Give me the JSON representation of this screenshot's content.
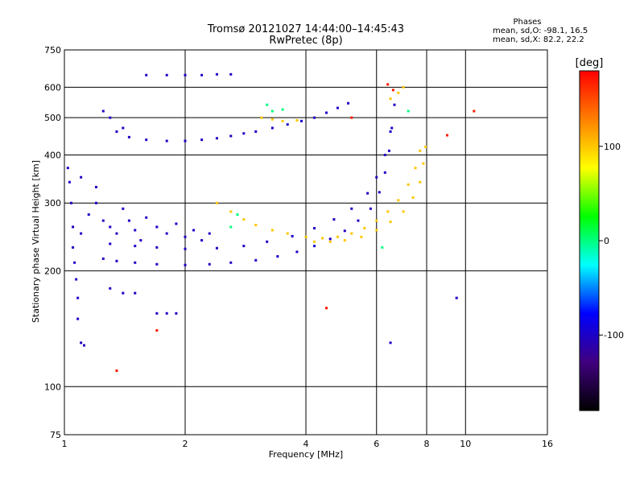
{
  "chart_data": {
    "type": "scatter",
    "title": "Tromsø 20121027 14:44:00–14:45:43",
    "subtitle": "RwPretec (8p)",
    "xlabel": "Frequency [MHz]",
    "ylabel": "Stationary phase Virtual Height [km]",
    "x_scale": "log",
    "y_scale": "log",
    "xlim": [
      1,
      16
    ],
    "ylim": [
      75,
      750
    ],
    "x_ticks": [
      1,
      2,
      4,
      6,
      8,
      10,
      16
    ],
    "x_tick_labels": [
      "1",
      "2",
      "4",
      "6",
      "8",
      "10",
      "16"
    ],
    "y_ticks": [
      75,
      100,
      200,
      300,
      400,
      500,
      600,
      750
    ],
    "y_tick_labels": [
      "75",
      "100",
      "200",
      "300",
      "400",
      "500",
      "600",
      "750"
    ],
    "grid": true,
    "phase_stats": {
      "heading": "Phases",
      "line_o": "mean, sd,O: -98.1, 16.5",
      "line_x": "mean, sd,X:  82.2, 22.2"
    },
    "colorbar": {
      "label": "[deg]",
      "ticks": [
        100,
        0,
        -100
      ],
      "tick_labels": [
        "100",
        "0",
        "-100"
      ],
      "range": [
        -180,
        180
      ],
      "colors": [
        "#ff0000",
        "#ff8000",
        "#ffff00",
        "#00ff00",
        "#00ffff",
        "#0000ff",
        "#400080",
        "#000000"
      ]
    },
    "series": [
      {
        "phase": -100,
        "points": [
          [
            1.25,
            215
          ],
          [
            1.35,
            212
          ],
          [
            1.5,
            210
          ],
          [
            1.7,
            208
          ],
          [
            2.0,
            207
          ],
          [
            2.3,
            208
          ],
          [
            2.6,
            210
          ],
          [
            3.0,
            213
          ],
          [
            3.4,
            218
          ],
          [
            3.8,
            224
          ],
          [
            4.2,
            232
          ],
          [
            4.6,
            242
          ],
          [
            5.0,
            254
          ],
          [
            5.4,
            270
          ],
          [
            5.8,
            290
          ],
          [
            6.1,
            320
          ],
          [
            6.3,
            360
          ],
          [
            6.45,
            410
          ],
          [
            6.55,
            470
          ],
          [
            6.65,
            540
          ],
          [
            1.3,
            235
          ],
          [
            1.5,
            232
          ],
          [
            1.7,
            230
          ],
          [
            2.0,
            228
          ],
          [
            2.4,
            229
          ],
          [
            2.8,
            232
          ],
          [
            3.2,
            238
          ],
          [
            3.7,
            246
          ],
          [
            4.2,
            258
          ],
          [
            4.7,
            272
          ],
          [
            5.2,
            290
          ],
          [
            5.7,
            318
          ],
          [
            6.0,
            350
          ],
          [
            6.3,
            400
          ],
          [
            6.5,
            460
          ],
          [
            1.1,
            250
          ],
          [
            1.15,
            280
          ],
          [
            1.2,
            300
          ],
          [
            1.25,
            270
          ],
          [
            1.3,
            260
          ],
          [
            1.35,
            250
          ],
          [
            1.4,
            290
          ],
          [
            1.45,
            270
          ],
          [
            1.5,
            255
          ],
          [
            1.55,
            240
          ],
          [
            1.6,
            275
          ],
          [
            1.7,
            260
          ],
          [
            1.8,
            250
          ],
          [
            1.9,
            265
          ],
          [
            2.0,
            245
          ],
          [
            2.1,
            255
          ],
          [
            2.2,
            240
          ],
          [
            2.3,
            250
          ],
          [
            1.02,
            370
          ],
          [
            1.03,
            340
          ],
          [
            1.04,
            300
          ],
          [
            1.05,
            260
          ],
          [
            1.05,
            230
          ],
          [
            1.06,
            210
          ],
          [
            1.07,
            190
          ],
          [
            1.08,
            170
          ],
          [
            1.08,
            150
          ],
          [
            1.1,
            130
          ],
          [
            1.12,
            128
          ],
          [
            1.35,
            460
          ],
          [
            1.45,
            445
          ],
          [
            1.6,
            438
          ],
          [
            1.8,
            435
          ],
          [
            2.0,
            435
          ],
          [
            2.2,
            438
          ],
          [
            2.4,
            442
          ],
          [
            2.6,
            448
          ],
          [
            2.8,
            455
          ],
          [
            1.25,
            520
          ],
          [
            1.3,
            500
          ],
          [
            1.4,
            470
          ],
          [
            1.6,
            645
          ],
          [
            1.8,
            645
          ],
          [
            2.0,
            645
          ],
          [
            2.2,
            645
          ],
          [
            2.4,
            648
          ],
          [
            2.6,
            648
          ],
          [
            3.0,
            460
          ],
          [
            3.3,
            470
          ],
          [
            3.6,
            480
          ],
          [
            3.9,
            490
          ],
          [
            4.2,
            500
          ],
          [
            4.5,
            515
          ],
          [
            4.8,
            530
          ],
          [
            5.1,
            545
          ],
          [
            1.3,
            180
          ],
          [
            1.4,
            175
          ],
          [
            1.5,
            175
          ],
          [
            1.7,
            155
          ],
          [
            1.8,
            155
          ],
          [
            1.9,
            155
          ],
          [
            6.5,
            130
          ],
          [
            9.5,
            170
          ],
          [
            1.1,
            350
          ],
          [
            1.2,
            330
          ]
        ]
      },
      {
        "phase": 100,
        "points": [
          [
            2.4,
            300
          ],
          [
            2.6,
            285
          ],
          [
            2.8,
            272
          ],
          [
            3.0,
            263
          ],
          [
            3.3,
            255
          ],
          [
            3.6,
            250
          ],
          [
            4.0,
            245
          ],
          [
            4.4,
            243
          ],
          [
            4.8,
            245
          ],
          [
            5.2,
            250
          ],
          [
            5.6,
            258
          ],
          [
            6.0,
            270
          ],
          [
            6.4,
            285
          ],
          [
            6.8,
            305
          ],
          [
            7.2,
            335
          ],
          [
            7.5,
            370
          ],
          [
            7.7,
            410
          ],
          [
            7.85,
            380
          ],
          [
            7.95,
            420
          ],
          [
            4.2,
            238
          ],
          [
            4.6,
            238
          ],
          [
            5.0,
            240
          ],
          [
            5.5,
            245
          ],
          [
            6.0,
            255
          ],
          [
            6.5,
            268
          ],
          [
            7.0,
            285
          ],
          [
            7.4,
            310
          ],
          [
            7.7,
            340
          ],
          [
            3.1,
            500
          ],
          [
            3.3,
            495
          ],
          [
            3.5,
            490
          ],
          [
            3.8,
            492
          ],
          [
            6.5,
            560
          ],
          [
            6.8,
            580
          ],
          [
            7.0,
            600
          ]
        ]
      },
      {
        "phase": 0,
        "points": [
          [
            2.7,
            280
          ],
          [
            3.3,
            520
          ],
          [
            3.5,
            525
          ],
          [
            3.2,
            540
          ],
          [
            7.2,
            520
          ],
          [
            6.2,
            230
          ],
          [
            2.6,
            260
          ]
        ]
      },
      {
        "phase": 170,
        "points": [
          [
            6.4,
            610
          ],
          [
            6.6,
            590
          ],
          [
            5.2,
            500
          ],
          [
            9.0,
            450
          ],
          [
            1.35,
            110
          ],
          [
            4.5,
            160
          ],
          [
            10.5,
            520
          ],
          [
            1.7,
            140
          ]
        ]
      }
    ]
  }
}
